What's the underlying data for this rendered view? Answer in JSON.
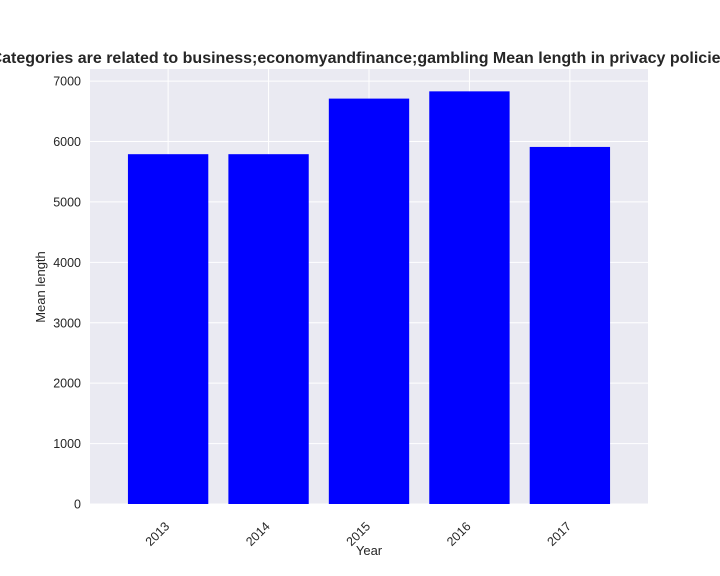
{
  "chart_data": {
    "type": "bar",
    "title": "Categories are related to business;economyandfinance;gambling Mean length in privacy policies",
    "xlabel": "Year",
    "ylabel": "Mean length",
    "categories": [
      "2013",
      "2014",
      "2015",
      "2016",
      "2017"
    ],
    "values": [
      5790,
      5790,
      6710,
      6830,
      5910
    ],
    "ylim": [
      0,
      7200
    ],
    "yticks": [
      0,
      1000,
      2000,
      3000,
      4000,
      5000,
      6000,
      7000
    ],
    "bar_color": "#0000ff",
    "plot_background": "#eaeaf2",
    "grid": true,
    "legend": "none"
  }
}
